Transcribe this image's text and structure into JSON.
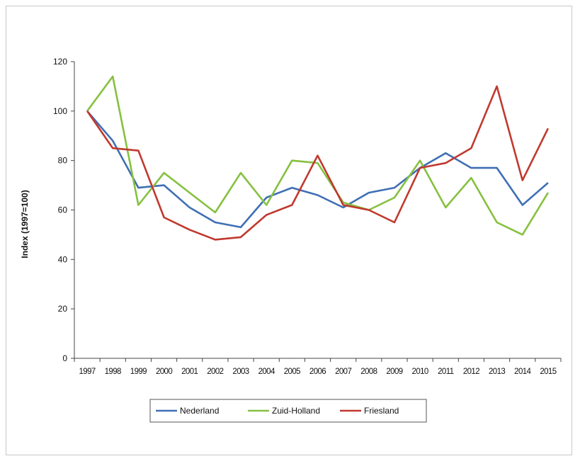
{
  "chart_data": {
    "type": "line",
    "title": "",
    "xlabel": "",
    "ylabel": "Index (1997=100)",
    "ylim": [
      0,
      120
    ],
    "yticks": [
      0,
      20,
      40,
      60,
      80,
      100,
      120
    ],
    "grid": false,
    "legend_position": "bottom",
    "x": [
      "1997",
      "1998",
      "1999",
      "2000",
      "2001",
      "2002",
      "2003",
      "2004",
      "2005",
      "2006",
      "2007",
      "2008",
      "2009",
      "2010",
      "2011",
      "2012",
      "2013",
      "2014",
      "2015"
    ],
    "series": [
      {
        "name": "Nederland",
        "color": "#3f6fb4",
        "values": [
          100,
          88,
          69,
          70,
          61,
          55,
          53,
          65,
          69,
          66,
          61,
          67,
          69,
          77,
          83,
          77,
          77,
          62,
          71
        ]
      },
      {
        "name": "Zuid-Holland",
        "color": "#86c040",
        "values": [
          100,
          114,
          62,
          75,
          67,
          59,
          75,
          62,
          80,
          79,
          63,
          60,
          65,
          80,
          61,
          73,
          55,
          50,
          67
        ]
      },
      {
        "name": "Friesland",
        "color": "#c0392f",
        "values": [
          100,
          85,
          84,
          57,
          52,
          48,
          49,
          58,
          62,
          82,
          62,
          60,
          55,
          77,
          79,
          85,
          110,
          72,
          93
        ]
      }
    ]
  }
}
